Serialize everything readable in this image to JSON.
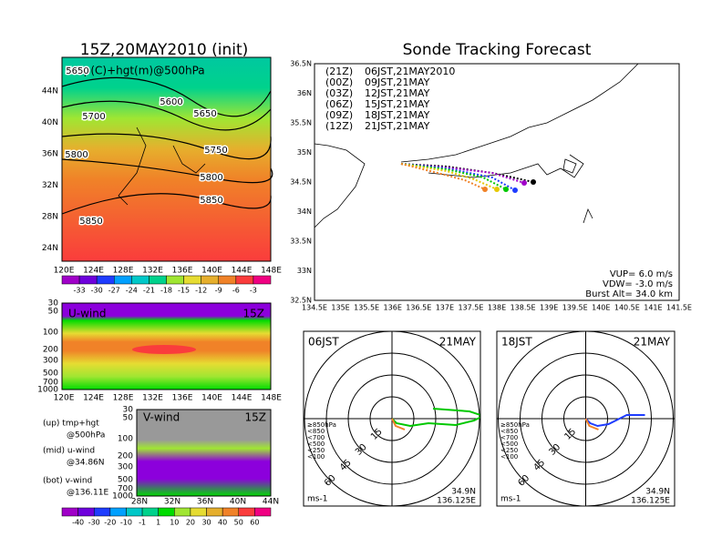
{
  "left": {
    "title": "15Z,20MAY2010 (init)",
    "map": {
      "label": "tmp(C)+hgt(m)@500hPa",
      "lat_labels": [
        "44N",
        "40N",
        "36N",
        "32N",
        "28N",
        "24N"
      ],
      "lon_labels": [
        "120E",
        "124E",
        "128E",
        "132E",
        "136E",
        "140E",
        "144E",
        "148E"
      ],
      "contour_labels": [
        "5650",
        "5600",
        "5700",
        "5650",
        "5750",
        "5800",
        "5800",
        "5850",
        "5850"
      ]
    },
    "temp_colorbar": {
      "labels": [
        "-33",
        "-30",
        "-27",
        "-24",
        "-21",
        "-18",
        "-15",
        "-12",
        "-9",
        "-6",
        "-3"
      ]
    },
    "uwind": {
      "label": "U-wind",
      "time": "15Z",
      "levels": [
        "30",
        "50",
        "100",
        "200",
        "300",
        "500",
        "700",
        "1000"
      ],
      "lon_labels": [
        "120E",
        "124E",
        "128E",
        "132E",
        "136E",
        "140E",
        "144E",
        "148E"
      ]
    },
    "vwind": {
      "label": "V-wind",
      "time": "15Z",
      "levels": [
        "30",
        "50",
        "100",
        "200",
        "300",
        "500",
        "700",
        "1000"
      ],
      "lat_labels": [
        "28N",
        "32N",
        "36N",
        "40N",
        "44N"
      ]
    },
    "notes": [
      "(up) tmp+hgt",
      "@500hPa",
      "(mid) u-wind",
      "@34.86N",
      "(bot) v-wind",
      "@136.11E"
    ],
    "wind_colorbar": {
      "labels": [
        "-40",
        "-30",
        "-20",
        "-10",
        "-1",
        "1",
        "10",
        "20",
        "30",
        "40",
        "50",
        "60"
      ]
    }
  },
  "right": {
    "title": "Sonde Tracking Forecast",
    "map": {
      "lat_labels": [
        "36.5N",
        "36N",
        "35.5N",
        "35N",
        "34.5N",
        "34N",
        "33.5N",
        "33N",
        "32.5N"
      ],
      "lon_labels": [
        "134.5E",
        "135E",
        "135.5E",
        "136E",
        "136.5E",
        "137E",
        "137.5E",
        "138E",
        "138.5E",
        "139E",
        "139.5E",
        "140E",
        "140.5E",
        "141E",
        "141.5E"
      ],
      "legend": [
        {
          "run": "(21Z)",
          "time": "06JST,21MAY2010",
          "color": "#000000"
        },
        {
          "run": "(00Z)",
          "time": "09JST,21MAY",
          "color": "#a000c8"
        },
        {
          "run": "(03Z)",
          "time": "12JST,21MAY",
          "color": "#1e3cff"
        },
        {
          "run": "(06Z)",
          "time": "15JST,21MAY",
          "color": "#00c800"
        },
        {
          "run": "(09Z)",
          "time": "18JST,21MAY",
          "color": "#e6c800"
        },
        {
          "run": "(12Z)",
          "time": "21JST,21MAY",
          "color": "#f08228"
        }
      ],
      "params": [
        "VUP= 6.0 m/s",
        "VDW= -3.0 m/s",
        "Burst Alt= 34.0 km"
      ]
    },
    "polar": [
      {
        "time": "06JST",
        "date": "21MAY",
        "ring_labels": [
          "15",
          "30",
          "45",
          "60"
        ],
        "levels": [
          "≥850hPa",
          "<850",
          "<700",
          "<500",
          "<250",
          "<100"
        ],
        "unit": "ms-1",
        "lat": "34.9N",
        "lon": "136.125E"
      },
      {
        "time": "18JST",
        "date": "21MAY",
        "ring_labels": [
          "15",
          "30",
          "45",
          "60"
        ],
        "levels": [
          "≥850hPa",
          "<850",
          "<700",
          "<500",
          "<250",
          "<100"
        ],
        "unit": "ms-1",
        "lat": "34.9N",
        "lon": "136.125E"
      }
    ]
  }
}
